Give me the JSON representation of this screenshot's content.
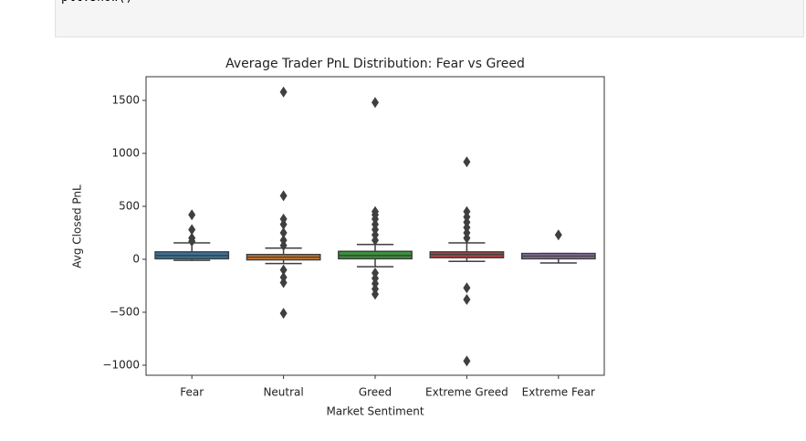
{
  "code": "plt.show()",
  "chart_data": {
    "type": "box",
    "title": "Average Trader PnL Distribution: Fear vs Greed",
    "xlabel": "Market Sentiment",
    "ylabel": "Avg Closed PnL",
    "categories": [
      "Fear",
      "Neutral",
      "Greed",
      "Extreme Greed",
      "Extreme Fear"
    ],
    "colors": [
      "#3274a1",
      "#e1812c",
      "#3a923a",
      "#c03d3e",
      "#9372b2"
    ],
    "stats": [
      {
        "q1": 5,
        "median": 35,
        "q3": 70,
        "whislo": -10,
        "whishi": 155,
        "fliers": [
          420,
          280,
          200,
          170
        ]
      },
      {
        "q1": -5,
        "median": 20,
        "q3": 45,
        "whislo": -40,
        "whishi": 105,
        "fliers": [
          1580,
          600,
          380,
          330,
          250,
          180,
          130,
          -100,
          -170,
          -220,
          -510
        ]
      },
      {
        "q1": 5,
        "median": 35,
        "q3": 75,
        "whislo": -70,
        "whishi": 140,
        "fliers": [
          1480,
          450,
          420,
          380,
          330,
          280,
          230,
          180,
          -130,
          -180,
          -230,
          -280,
          -330
        ]
      },
      {
        "q1": 15,
        "median": 45,
        "q3": 70,
        "whislo": -20,
        "whishi": 155,
        "fliers": [
          920,
          450,
          400,
          350,
          300,
          250,
          200,
          -270,
          -380,
          -960
        ]
      },
      {
        "q1": 5,
        "median": 30,
        "q3": 55,
        "whislo": -35,
        "whishi": 55,
        "fliers": [
          230
        ]
      }
    ],
    "ylim": [
      -1095,
      1724
    ],
    "yticks": [
      {
        "value": -1000,
        "label": "−1000"
      },
      {
        "value": -500,
        "label": "−500"
      },
      0,
      500,
      1000,
      1500
    ]
  }
}
